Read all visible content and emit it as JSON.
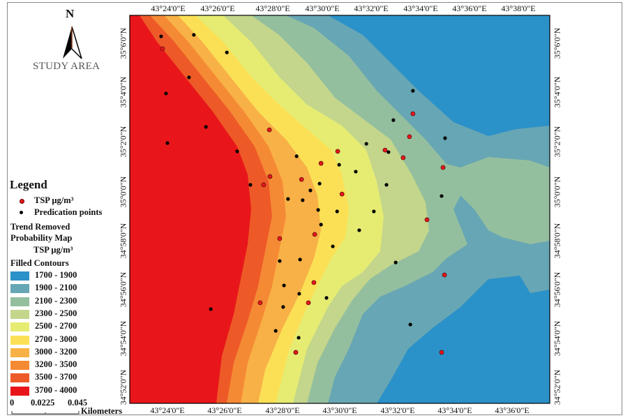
{
  "north_label": "N",
  "title": "STUDY AREA",
  "legend": {
    "title": "Legend",
    "point_items": [
      {
        "label": "TSP µg/m³",
        "color": "#e8161a"
      },
      {
        "label": "Predication points",
        "color": "#000000"
      }
    ],
    "layer_title_1": "Trend Removed",
    "layer_title_2": "Probability Map",
    "layer_units": "TSP µg/m³",
    "contours_title": "Filled Contours",
    "classes": [
      {
        "label": "1700 - 1900",
        "color": "#2b91c9"
      },
      {
        "label": "1900 - 2100",
        "color": "#67a6b4"
      },
      {
        "label": "2100 - 2300",
        "color": "#94bf9f"
      },
      {
        "label": "2300 - 2500",
        "color": "#c3d68b"
      },
      {
        "label": "2500 - 2700",
        "color": "#e6ec72"
      },
      {
        "label": "2700 - 3000",
        "color": "#fbe056"
      },
      {
        "label": "3000 - 3200",
        "color": "#f8b146"
      },
      {
        "label": "3200 - 3500",
        "color": "#f58a35"
      },
      {
        "label": "3500 - 3700",
        "color": "#ee5a27"
      },
      {
        "label": "3700 - 4000",
        "color": "#e8161a"
      }
    ]
  },
  "scale_bar": {
    "ticks": [
      "0",
      "0.0225",
      "0.045"
    ],
    "unit": "Kilometers"
  },
  "axes": {
    "top": [
      "43°24'0\"E",
      "43°26'0\"E",
      "43°28'0\"E",
      "43°30'0\"E",
      "43°32'0\"E",
      "43°34'0\"E",
      "43°36'0\"E",
      "43°38'0\"E"
    ],
    "bottom": [
      "43°24'0\"E",
      "43°26'0\"E",
      "43°28'0\"E",
      "43°30'0\"E",
      "43°32'0\"E",
      "43°34'0\"E",
      "43°36'0\"E"
    ],
    "left": [
      "35°6'0\"N",
      "35°4'0\"N",
      "35°2'0\"N",
      "35°0'0\"N",
      "34°58'0\"N",
      "34°56'0\"N",
      "34°54'0\"N",
      "34°52'0\"N"
    ],
    "right": [
      "35°6'0\"N",
      "35°4'0\"N",
      "35°2'0\"N",
      "35°0'0\"N",
      "34°58'0\"N",
      "34°56'0\"N",
      "34°54'0\"N",
      "34°52'0\"N"
    ]
  },
  "prediction_points": [
    [
      23.78,
      66.37
    ],
    [
      24.92,
      66.43
    ],
    [
      26.07,
      65.71
    ],
    [
      24.75,
      64.69
    ],
    [
      23.95,
      64.03
    ],
    [
      25.34,
      62.66
    ],
    [
      24.0,
      62.0
    ],
    [
      26.43,
      61.66
    ],
    [
      26.89,
      60.29
    ],
    [
      28.5,
      61.46
    ],
    [
      28.2,
      59.71
    ],
    [
      28.98,
      60.06
    ],
    [
      28.71,
      59.66
    ],
    [
      29.25,
      59.26
    ],
    [
      29.35,
      58.66
    ],
    [
      29.76,
      57.77
    ],
    [
      29.3,
      60.34
    ],
    [
      29.91,
      59.2
    ],
    [
      29.98,
      61.11
    ],
    [
      30.56,
      60.83
    ],
    [
      30.68,
      58.43
    ],
    [
      30.93,
      61.97
    ],
    [
      31.19,
      59.2
    ],
    [
      31.63,
      60.29
    ],
    [
      31.7,
      61.63
    ],
    [
      31.87,
      62.94
    ],
    [
      32.55,
      64.14
    ],
    [
      33.67,
      62.2
    ],
    [
      33.55,
      59.83
    ],
    [
      31.95,
      57.11
    ],
    [
      27.91,
      57.17
    ],
    [
      28.62,
      57.23
    ],
    [
      28.06,
      56.17
    ],
    [
      28.59,
      55.83
    ],
    [
      28.03,
      55.29
    ],
    [
      29.54,
      55.66
    ],
    [
      27.77,
      54.31
    ],
    [
      28.57,
      54.03
    ],
    [
      25.51,
      55.2
    ],
    [
      32.46,
      54.57
    ]
  ],
  "tsp_points": [
    [
      27.55,
      62.54
    ],
    [
      27.57,
      60.63
    ],
    [
      27.35,
      60.29
    ],
    [
      28.67,
      60.51
    ],
    [
      29.35,
      61.17
    ],
    [
      29.93,
      61.66
    ],
    [
      30.08,
      59.91
    ],
    [
      29.13,
      58.26
    ],
    [
      27.91,
      58.09
    ],
    [
      31.58,
      61.71
    ],
    [
      32.21,
      61.4
    ],
    [
      32.43,
      62.26
    ],
    [
      32.55,
      63.2
    ],
    [
      33.6,
      61.0
    ],
    [
      33.04,
      58.86
    ],
    [
      33.65,
      56.6
    ],
    [
      29.1,
      56.29
    ],
    [
      27.23,
      55.46
    ],
    [
      28.91,
      55.46
    ],
    [
      28.47,
      53.43
    ],
    [
      33.55,
      53.43
    ],
    [
      23.83,
      65.86
    ]
  ]
}
